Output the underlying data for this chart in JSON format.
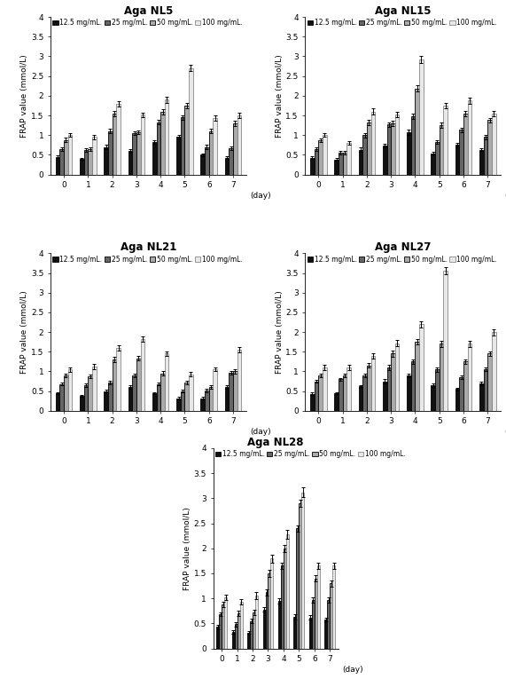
{
  "titles": [
    "Aga NL5",
    "Aga NL15",
    "Aga NL21",
    "Aga NL27",
    "Aga NL28"
  ],
  "days": [
    0,
    1,
    2,
    3,
    4,
    5,
    6,
    7
  ],
  "concentrations": [
    "12.5 mg/mL.",
    "25 mg/mL.",
    "50 mg/mL.",
    "100 mg/mL."
  ],
  "colors": [
    "#111111",
    "#666666",
    "#aaaaaa",
    "#e8e8e8"
  ],
  "ylabel": "FRAP value (mmol/L)",
  "ylim": [
    0,
    4
  ],
  "yticks": [
    0,
    0.5,
    1.0,
    1.5,
    2.0,
    2.5,
    3.0,
    3.5,
    4.0
  ],
  "ytick_labels": [
    "0",
    "0.5",
    "1",
    "1.5",
    "2",
    "2.5",
    "3",
    "3.5",
    "4"
  ],
  "NL5": {
    "values": [
      [
        0.45,
        0.4,
        0.7,
        0.6,
        0.83,
        0.95,
        0.5,
        0.43
      ],
      [
        0.65,
        0.62,
        1.1,
        1.05,
        1.33,
        1.45,
        0.7,
        0.67
      ],
      [
        0.88,
        0.64,
        1.55,
        1.07,
        1.6,
        1.75,
        1.1,
        1.3
      ],
      [
        1.0,
        0.95,
        1.8,
        1.52,
        1.9,
        2.7,
        1.43,
        1.5
      ]
    ],
    "errors": [
      [
        0.03,
        0.03,
        0.05,
        0.04,
        0.05,
        0.05,
        0.04,
        0.04
      ],
      [
        0.04,
        0.04,
        0.06,
        0.05,
        0.06,
        0.06,
        0.05,
        0.05
      ],
      [
        0.05,
        0.04,
        0.07,
        0.05,
        0.07,
        0.07,
        0.06,
        0.06
      ],
      [
        0.05,
        0.05,
        0.07,
        0.06,
        0.08,
        0.08,
        0.06,
        0.07
      ]
    ]
  },
  "NL15": {
    "values": [
      [
        0.43,
        0.38,
        0.63,
        0.73,
        1.07,
        0.54,
        0.75,
        0.63
      ],
      [
        0.65,
        0.55,
        1.0,
        1.27,
        1.48,
        0.82,
        1.13,
        0.95
      ],
      [
        0.87,
        0.55,
        1.32,
        1.3,
        2.18,
        1.25,
        1.55,
        1.38
      ],
      [
        1.0,
        0.8,
        1.6,
        1.53,
        2.92,
        1.75,
        1.88,
        1.55
      ]
    ],
    "errors": [
      [
        0.03,
        0.03,
        0.05,
        0.05,
        0.06,
        0.04,
        0.05,
        0.04
      ],
      [
        0.04,
        0.04,
        0.06,
        0.06,
        0.07,
        0.05,
        0.06,
        0.05
      ],
      [
        0.05,
        0.04,
        0.07,
        0.07,
        0.08,
        0.06,
        0.07,
        0.06
      ],
      [
        0.05,
        0.05,
        0.08,
        0.07,
        0.09,
        0.07,
        0.08,
        0.07
      ]
    ]
  },
  "NL21": {
    "values": [
      [
        0.45,
        0.38,
        0.5,
        0.6,
        0.45,
        0.32,
        0.32,
        0.6
      ],
      [
        0.68,
        0.65,
        0.72,
        0.9,
        0.68,
        0.5,
        0.52,
        0.97
      ],
      [
        0.9,
        0.88,
        1.3,
        1.33,
        0.95,
        0.72,
        0.6,
        1.0
      ],
      [
        1.05,
        1.12,
        1.6,
        1.83,
        1.45,
        0.93,
        1.05,
        1.55
      ]
    ],
    "errors": [
      [
        0.03,
        0.03,
        0.04,
        0.04,
        0.03,
        0.03,
        0.03,
        0.04
      ],
      [
        0.04,
        0.04,
        0.05,
        0.05,
        0.04,
        0.04,
        0.04,
        0.05
      ],
      [
        0.05,
        0.05,
        0.06,
        0.06,
        0.05,
        0.04,
        0.04,
        0.06
      ],
      [
        0.06,
        0.06,
        0.07,
        0.07,
        0.06,
        0.05,
        0.05,
        0.07
      ]
    ]
  },
  "NL27": {
    "values": [
      [
        0.43,
        0.45,
        0.62,
        0.75,
        0.9,
        0.65,
        0.55,
        0.7
      ],
      [
        0.75,
        0.8,
        0.9,
        1.1,
        1.25,
        1.05,
        0.85,
        1.05
      ],
      [
        0.9,
        0.9,
        1.15,
        1.45,
        1.75,
        1.7,
        1.25,
        1.45
      ],
      [
        1.1,
        1.1,
        1.4,
        1.72,
        2.2,
        3.55,
        1.7,
        2.0
      ]
    ],
    "errors": [
      [
        0.03,
        0.03,
        0.04,
        0.05,
        0.05,
        0.05,
        0.04,
        0.04
      ],
      [
        0.04,
        0.04,
        0.05,
        0.06,
        0.06,
        0.06,
        0.05,
        0.05
      ],
      [
        0.05,
        0.05,
        0.06,
        0.07,
        0.07,
        0.07,
        0.06,
        0.06
      ],
      [
        0.06,
        0.06,
        0.07,
        0.08,
        0.08,
        0.09,
        0.07,
        0.08
      ]
    ]
  },
  "NL28": {
    "values": [
      [
        0.43,
        0.33,
        0.32,
        0.78,
        0.95,
        0.63,
        0.62,
        0.58
      ],
      [
        0.68,
        0.48,
        0.55,
        1.12,
        1.65,
        2.4,
        0.97,
        0.97
      ],
      [
        0.88,
        0.7,
        0.72,
        1.5,
        2.0,
        2.9,
        1.4,
        1.3
      ],
      [
        1.02,
        0.93,
        1.05,
        1.8,
        2.28,
        3.12,
        1.65,
        1.65
      ]
    ],
    "errors": [
      [
        0.04,
        0.03,
        0.03,
        0.05,
        0.06,
        0.05,
        0.04,
        0.04
      ],
      [
        0.04,
        0.04,
        0.05,
        0.06,
        0.07,
        0.06,
        0.05,
        0.05
      ],
      [
        0.05,
        0.05,
        0.06,
        0.07,
        0.07,
        0.07,
        0.06,
        0.06
      ],
      [
        0.06,
        0.06,
        0.07,
        0.08,
        0.09,
        0.09,
        0.07,
        0.07
      ]
    ]
  }
}
